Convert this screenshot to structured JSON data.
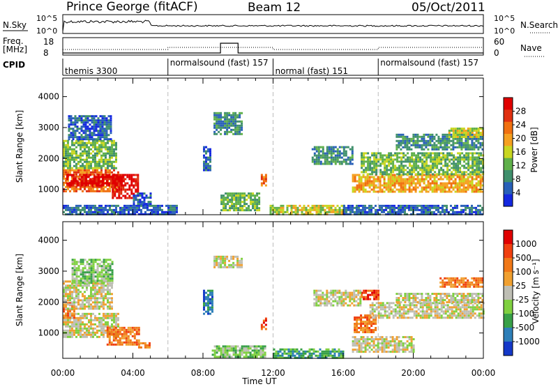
{
  "header": {
    "station": "Prince George (fitACF)",
    "beam": "Beam 12",
    "date": "05/Oct/2011"
  },
  "panels": {
    "nsky_label": "N.Sky",
    "nsky_ticks": [
      "10^5",
      "10^0"
    ],
    "nsearch_label": "N.Search",
    "nsearch_ticks": [
      "10^5",
      "10^0"
    ],
    "freq_label": "Freq.",
    "freq_unit": "[MHz]",
    "freq_ticks": [
      "18",
      "8"
    ],
    "nave_label": "Nave",
    "nave_ticks": [
      "60",
      "0"
    ],
    "cpid_label": "CPID",
    "cpid_segments": [
      {
        "label": "themis 3300",
        "start_h": 0,
        "end_h": 6
      },
      {
        "label": "normalsound (fast) 157",
        "start_h": 6,
        "end_h": 12
      },
      {
        "label": "normal (fast) 151",
        "start_h": 12,
        "end_h": 18
      },
      {
        "label": "normalsound (fast) 157",
        "start_h": 18,
        "end_h": 24
      }
    ]
  },
  "colors": {
    "power": [
      "#1428e0",
      "#2860b8",
      "#3f8f6c",
      "#5fb04a",
      "#c8d620",
      "#f5a020",
      "#f07010",
      "#e03010",
      "#e00000"
    ],
    "velocity": [
      "#1438c8",
      "#2e7fb8",
      "#38a048",
      "#7fd040",
      "#bebeb4",
      "#f0a030",
      "#f07818",
      "#f04010",
      "#e00000"
    ]
  },
  "chart_data": [
    {
      "type": "heatmap",
      "name": "power",
      "ylabel": "Slant Range [km]",
      "ylim": [
        180,
        4600
      ],
      "yticks": [
        1000,
        2000,
        3000,
        4000
      ],
      "xlim": [
        0,
        24
      ],
      "xticks": [
        "00:00",
        "04:00",
        "08:00",
        "12:00",
        "16:00",
        "20:00",
        "00:00"
      ],
      "colorbar_label": "Power [dB]",
      "colorbar_ticks": [
        "28",
        "24",
        "20",
        "16",
        "12",
        "8",
        "4"
      ],
      "clim": [
        0,
        32
      ],
      "regions": [
        {
          "t0": 0.0,
          "t1": 3.2,
          "r0": 950,
          "r1": 1650,
          "level": 6
        },
        {
          "t0": 0.2,
          "t1": 3.5,
          "r0": 1100,
          "r1": 1500,
          "level": 8
        },
        {
          "t0": 2.8,
          "t1": 4.3,
          "r0": 700,
          "r1": 1500,
          "level": 8
        },
        {
          "t0": 0.0,
          "t1": 3.0,
          "r0": 1700,
          "r1": 2600,
          "level": 3
        },
        {
          "t0": 0.3,
          "t1": 2.8,
          "r0": 2600,
          "r1": 3400,
          "level": 1
        },
        {
          "t0": 0.0,
          "t1": 6.5,
          "r0": 200,
          "r1": 500,
          "level": 1
        },
        {
          "t0": 4.0,
          "t1": 5.0,
          "r0": 500,
          "r1": 900,
          "level": 1
        },
        {
          "t0": 8.6,
          "t1": 10.2,
          "r0": 2800,
          "r1": 3500,
          "level": 2
        },
        {
          "t0": 8.0,
          "t1": 8.4,
          "r0": 1600,
          "r1": 2400,
          "level": 1
        },
        {
          "t0": 11.3,
          "t1": 11.6,
          "r0": 1100,
          "r1": 1500,
          "level": 6
        },
        {
          "t0": 9.0,
          "t1": 11.2,
          "r0": 350,
          "r1": 900,
          "level": 3
        },
        {
          "t0": 11.8,
          "t1": 16.0,
          "r0": 200,
          "r1": 500,
          "level": 4
        },
        {
          "t0": 16.5,
          "t1": 24.0,
          "r0": 900,
          "r1": 1500,
          "level": 5
        },
        {
          "t0": 17.0,
          "t1": 24.0,
          "r0": 1500,
          "r1": 2200,
          "level": 3
        },
        {
          "t0": 14.2,
          "t1": 16.5,
          "r0": 1800,
          "r1": 2400,
          "level": 2
        },
        {
          "t0": 19.0,
          "t1": 24.0,
          "r0": 2300,
          "r1": 2800,
          "level": 2
        },
        {
          "t0": 22.0,
          "t1": 24.0,
          "r0": 2700,
          "r1": 3000,
          "level": 4
        },
        {
          "t0": 16.0,
          "t1": 24.0,
          "r0": 200,
          "r1": 500,
          "level": 1
        }
      ]
    },
    {
      "type": "heatmap",
      "name": "velocity",
      "ylabel": "Slant Range [km]",
      "ylim": [
        180,
        4600
      ],
      "yticks": [
        1000,
        2000,
        3000,
        4000
      ],
      "xlim": [
        0,
        24
      ],
      "xticks": [
        "00:00",
        "04:00",
        "08:00",
        "12:00",
        "16:00",
        "20:00",
        "00:00"
      ],
      "xlabel": "Time UT",
      "colorbar_label": "Velocity [m s⁻¹]",
      "colorbar_ticks": [
        "1000",
        "500",
        "100",
        "25",
        "-25",
        "-100",
        "-500",
        "-1000"
      ],
      "clim": [
        -1200,
        1200
      ],
      "regions": [
        {
          "t0": 0.0,
          "t1": 3.2,
          "r0": 850,
          "r1": 1650,
          "level": 4
        },
        {
          "t0": 0.0,
          "t1": 0.7,
          "r0": 1500,
          "r1": 2000,
          "level": 6
        },
        {
          "t0": 2.5,
          "t1": 4.3,
          "r0": 600,
          "r1": 1200,
          "level": 6
        },
        {
          "t0": 4.3,
          "t1": 5.0,
          "r0": 500,
          "r1": 700,
          "level": 6
        },
        {
          "t0": 0.0,
          "t1": 2.8,
          "r0": 1800,
          "r1": 2700,
          "level": 4
        },
        {
          "t0": 0.5,
          "t1": 2.8,
          "r0": 2600,
          "r1": 3400,
          "level": 3
        },
        {
          "t0": 8.6,
          "t1": 10.2,
          "r0": 3100,
          "r1": 3500,
          "level": 4
        },
        {
          "t0": 8.0,
          "t1": 8.5,
          "r0": 1600,
          "r1": 2400,
          "level": 1
        },
        {
          "t0": 11.3,
          "t1": 11.6,
          "r0": 1100,
          "r1": 1500,
          "level": 7
        },
        {
          "t0": 8.5,
          "t1": 11.5,
          "r0": 200,
          "r1": 600,
          "level": 3
        },
        {
          "t0": 12.0,
          "t1": 16.0,
          "r0": 200,
          "r1": 500,
          "level": 2
        },
        {
          "t0": 16.6,
          "t1": 17.8,
          "r0": 1000,
          "r1": 1600,
          "level": 6
        },
        {
          "t0": 17.0,
          "t1": 18.0,
          "r0": 2100,
          "r1": 2400,
          "level": 7
        },
        {
          "t0": 14.3,
          "t1": 17.0,
          "r0": 1900,
          "r1": 2400,
          "level": 4
        },
        {
          "t0": 17.5,
          "t1": 24.0,
          "r0": 1500,
          "r1": 2000,
          "level": 4
        },
        {
          "t0": 19.0,
          "t1": 24.0,
          "r0": 2000,
          "r1": 2300,
          "level": 4
        },
        {
          "t0": 21.5,
          "t1": 24.0,
          "r0": 2500,
          "r1": 2800,
          "level": 6
        },
        {
          "t0": 16.5,
          "t1": 20.0,
          "r0": 400,
          "r1": 900,
          "level": 4
        }
      ]
    }
  ]
}
